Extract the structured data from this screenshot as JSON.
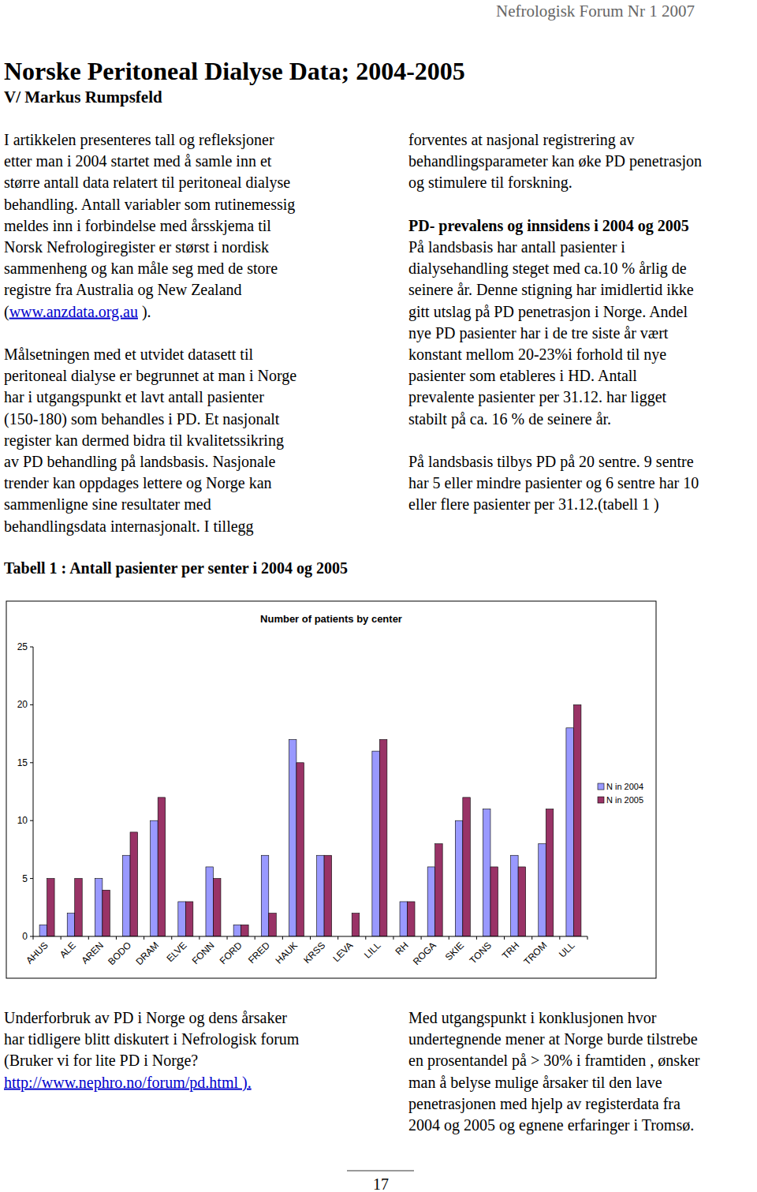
{
  "header": "Nefrologisk Forum Nr 1 2007",
  "title": "Norske Peritoneal Dialyse Data; 2004-2005",
  "author": "V/ Markus Rumpsfeld",
  "columns": [
    {
      "blocks": [
        {
          "lines": [
            [
              "I artikkelen presenteres tall og refleksjoner"
            ],
            [
              "etter man i 2004 startet med å samle inn et"
            ],
            [
              "større antall data relatert til peritoneal dialyse"
            ],
            [
              "behandling. Antall variabler som rutinemessig"
            ],
            [
              "meldes inn i forbindelse med årsskjema til"
            ],
            [
              "Norsk Nefrologiregister er størst i nordisk"
            ],
            [
              "sammenheng og kan måle seg med de store"
            ],
            [
              "registre fra Australia og New Zealand"
            ],
            [
              "(",
              {
                "link": "www.anzdata.org.au"
              },
              " )."
            ]
          ]
        },
        {
          "lines": [
            [
              "Målsetningen med et utvidet datasett til"
            ],
            [
              "peritoneal dialyse er begrunnet at man i Norge"
            ],
            [
              "har i utgangspunkt et lavt antall pasienter"
            ],
            [
              "(150-180) som behandles i PD. Et nasjonalt"
            ],
            [
              "register kan dermed bidra til kvalitetssikring"
            ],
            [
              "av PD behandling på landsbasis. Nasjonale"
            ],
            [
              "trender kan oppdages lettere og Norge kan"
            ],
            [
              "sammenligne sine resultater med"
            ],
            [
              "behandlingsdata internasjonalt. I tillegg"
            ]
          ]
        }
      ]
    },
    {
      "blocks": [
        {
          "lines": [
            [
              "forventes at nasjonal registrering av"
            ],
            [
              "behandlingsparameter kan øke PD penetrasjon"
            ],
            [
              "og stimulere til forskning."
            ]
          ]
        },
        {
          "heading": "PD- prevalens og innsidens i 2004 og 2005",
          "lines": [
            [
              "På landsbasis har antall pasienter i"
            ],
            [
              "dialysehandling steget med ca.10 % årlig de"
            ],
            [
              "seinere år. Denne stigning har imidlertid ikke"
            ],
            [
              "gitt utslag på PD penetrasjon i Norge. Andel"
            ],
            [
              "nye PD pasienter har i de tre siste år vært"
            ],
            [
              "konstant mellom 20-23%i forhold til nye"
            ],
            [
              "pasienter som etableres i HD. Antall"
            ],
            [
              "prevalente pasienter per 31.12. har ligget"
            ],
            [
              "stabilt på ca. 16 % de seinere år."
            ]
          ]
        },
        {
          "lines": [
            [
              "På landsbasis tilbys PD på 20 sentre. 9 sentre"
            ],
            [
              "har 5 eller mindre pasienter og 6 sentre har 10"
            ],
            [
              "eller flere pasienter per 31.12.(tabell 1 )"
            ]
          ]
        }
      ]
    }
  ],
  "table_caption": "Tabell 1 : Antall pasienter per senter i 2004 og 2005",
  "chart_data": {
    "type": "bar",
    "title": "Number of patients by center",
    "categories": [
      "AHUS",
      "ALE",
      "AREN",
      "BODO",
      "DRAM",
      "ELVE",
      "FONN",
      "FORD",
      "FRED",
      "HAUK",
      "KRSS",
      "LEVA",
      "LILL",
      "RH",
      "ROGA",
      "SKIE",
      "TONS",
      "TRH",
      "TROM",
      "ULL"
    ],
    "series": [
      {
        "name": "N in 2004",
        "color": "#9999ff",
        "values": [
          1,
          2,
          5,
          7,
          10,
          3,
          6,
          1,
          7,
          17,
          7,
          0,
          16,
          3,
          6,
          10,
          11,
          7,
          8,
          18
        ]
      },
      {
        "name": "N in 2005",
        "color": "#993366",
        "values": [
          5,
          5,
          4,
          9,
          12,
          3,
          5,
          1,
          2,
          15,
          7,
          2,
          17,
          3,
          8,
          12,
          6,
          6,
          11,
          20
        ]
      }
    ],
    "ylim": [
      0,
      25
    ],
    "yticks": [
      0,
      5,
      10,
      15,
      20,
      25
    ],
    "grid": false,
    "legend": "right"
  },
  "bottom_columns": [
    {
      "blocks": [
        {
          "lines": [
            [
              "Underforbruk av PD i Norge og dens årsaker"
            ],
            [
              "har tidligere blitt diskutert i Nefrologisk forum"
            ],
            [
              "(Bruker vi for lite PD i Norge?"
            ],
            [
              {
                "link": "http://www.nephro.no/forum/pd.html )."
              }
            ]
          ]
        }
      ]
    },
    {
      "blocks": [
        {
          "lines": [
            [
              "Med utgangspunkt i konklusjonen hvor"
            ],
            [
              "undertegnende mener at Norge burde tilstrebe"
            ],
            [
              "en prosentandel på > 30% i framtiden , ønsker"
            ],
            [
              "man å belyse mulige årsaker til den lave"
            ],
            [
              "penetrasjonen med hjelp av registerdata fra"
            ],
            [
              "2004 og 2005 og egnene erfaringer i Tromsø."
            ]
          ]
        }
      ]
    }
  ],
  "page_number": 17
}
